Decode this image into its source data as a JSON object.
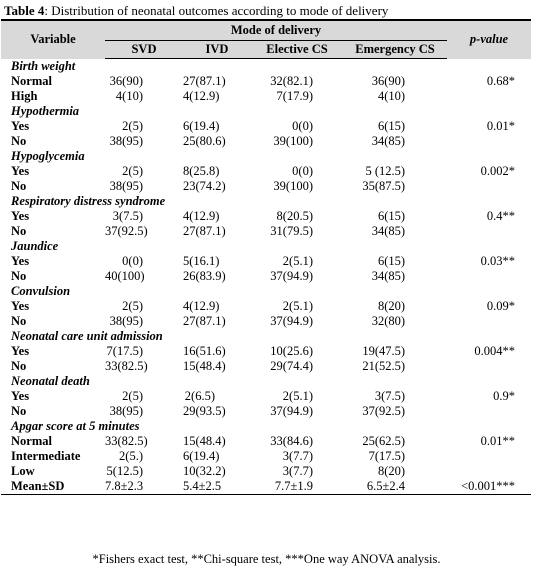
{
  "caption": {
    "label": "Table 4",
    "text": ": Distribution of neonatal outcomes according to mode of delivery"
  },
  "header": {
    "variable": "Variable",
    "mode_of_delivery": "Mode of delivery",
    "p_value": "p-value",
    "columns": [
      "SVD",
      "IVD",
      "Elective CS",
      "Emergency CS"
    ]
  },
  "sections": [
    {
      "title": "Birth weight",
      "rows": [
        {
          "label": "Normal",
          "values": [
            "36(90)",
            "27(87.1)",
            "32(82.1)",
            "36(90)"
          ],
          "p": "0.68*"
        },
        {
          "label": "High",
          "values": [
            "4(10)",
            "4(12.9)",
            "7(17.9)",
            "4(10)"
          ],
          "p": ""
        }
      ]
    },
    {
      "title": "Hypothermia",
      "rows": [
        {
          "label": "Yes",
          "values": [
            "2(5)",
            "6(19.4)",
            "0(0)",
            "6(15)"
          ],
          "p": "0.01*"
        },
        {
          "label": "No",
          "values": [
            "38(95)",
            "25(80.6)",
            "39(100)",
            "34(85)"
          ],
          "p": ""
        }
      ]
    },
    {
      "title": "Hypoglycemia",
      "rows": [
        {
          "label": "Yes",
          "values": [
            "2(5)",
            "8(25.8)",
            "0(0)",
            "5 (12.5)"
          ],
          "p": "0.002*"
        },
        {
          "label": "No",
          "values": [
            "38(95)",
            "23(74.2)",
            "39(100)",
            "35(87.5)"
          ],
          "p": ""
        }
      ]
    },
    {
      "title": "Respiratory distress syndrome",
      "rows": [
        {
          "label": "Yes",
          "values": [
            "3(7.5)",
            "4(12.9)",
            "8(20.5)",
            "6(15)"
          ],
          "p": "0.4**"
        },
        {
          "label": "No",
          "values": [
            "37(92.5)",
            "27(87.1)",
            "31(79.5)",
            "34(85)"
          ],
          "p": ""
        }
      ]
    },
    {
      "title": "Jaundice",
      "rows": [
        {
          "label": "Yes",
          "values": [
            "0(0)",
            "5(16.1)",
            "2(5.1)",
            "6(15)"
          ],
          "p": "0.03**"
        },
        {
          "label": "No",
          "values": [
            "40(100)",
            "26(83.9)",
            "37(94.9)",
            "34(85)"
          ],
          "p": ""
        }
      ]
    },
    {
      "title": "Convulsion",
      "rows": [
        {
          "label": "Yes",
          "values": [
            "2(5)",
            "4(12.9)",
            "2(5.1)",
            "8(20)"
          ],
          "p": "0.09*"
        },
        {
          "label": "No",
          "values": [
            "38(95)",
            "27(87.1)",
            "37(94.9)",
            "32(80)"
          ],
          "p": ""
        }
      ]
    },
    {
      "title": "Neonatal care unit admission",
      "rows": [
        {
          "label": "Yes",
          "values": [
            "7(17.5)",
            "16(51.6)",
            "10(25.6)",
            "19(47.5)"
          ],
          "p": "0.004**"
        },
        {
          "label": "No",
          "values": [
            "33(82.5)",
            "15(48.4)",
            "29(74.4)",
            "21(52.5)"
          ],
          "p": ""
        }
      ]
    },
    {
      "title": "Neonatal death",
      "rows": [
        {
          "label": "Yes",
          "values": [
            "2(5)",
            "2(6.5)",
            "2(5.1)",
            "3(7.5)"
          ],
          "p": "0.9*"
        },
        {
          "label": "No",
          "values": [
            "38(95)",
            "29(93.5)",
            "37(94.9)",
            "37(92.5)"
          ],
          "p": ""
        }
      ]
    },
    {
      "title": "Apgar score at 5 minutes",
      "rows": [
        {
          "label": "Normal",
          "values": [
            "33(82.5)",
            "15(48.4)",
            "33(84.6)",
            "25(62.5)"
          ],
          "p": "0.01**"
        },
        {
          "label": "Intermediate",
          "values": [
            "2(5.)",
            "6(19.4)",
            "3(7.7)",
            "7(17.5)"
          ],
          "p": ""
        },
        {
          "label": "Low",
          "values": [
            "5(12.5)",
            "10(32.2)",
            "3(7.7)",
            "8(20)"
          ],
          "p": ""
        },
        {
          "label": "Mean±SD",
          "values": [
            "7.8±2.3",
            "5.4±2.5",
            "7.7±1.9",
            "6.5±2.4"
          ],
          "p": "<0.001***"
        }
      ]
    }
  ],
  "footnote": "*Fishers exact test, **Chi-square test, ***One way ANOVA analysis."
}
